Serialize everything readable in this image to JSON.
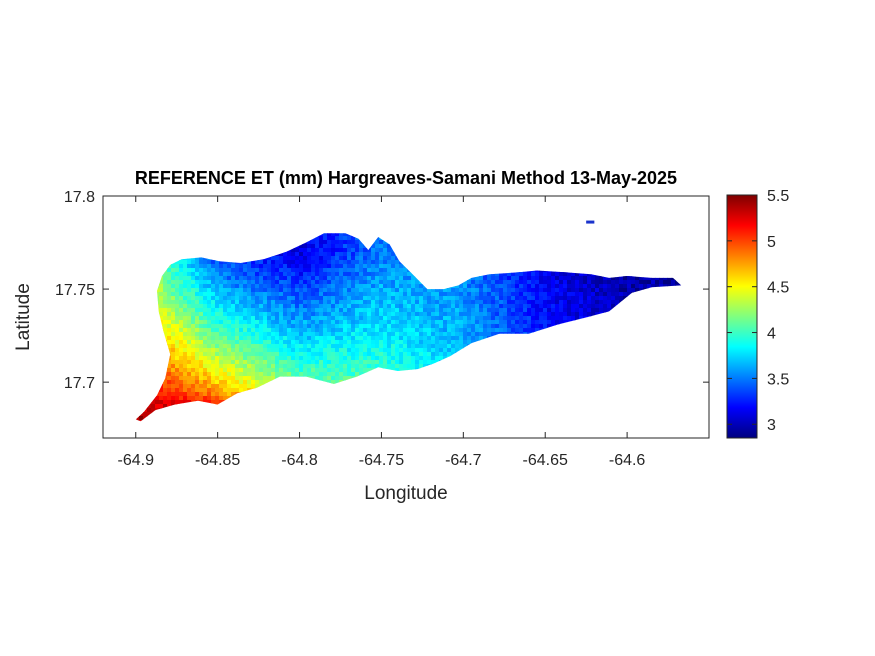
{
  "chart_data": {
    "type": "heatmap",
    "title": "REFERENCE ET (mm) Hargreaves-Samani Method  13-May-2025",
    "xlabel": "Longitude",
    "ylabel": "Latitude",
    "xlim": [
      -64.92,
      -64.55
    ],
    "ylim": [
      17.67,
      17.8
    ],
    "xticks": [
      -64.9,
      -64.85,
      -64.8,
      -64.75,
      -64.7,
      -64.65,
      -64.6
    ],
    "xtick_labels": [
      "-64.9",
      "-64.85",
      "-64.8",
      "-64.75",
      "-64.7",
      "-64.65",
      "-64.6"
    ],
    "yticks": [
      17.7,
      17.75,
      17.8
    ],
    "ytick_labels": [
      "17.7",
      "17.75",
      "17.8"
    ],
    "grid": false,
    "colormap": "jet",
    "colorbar": {
      "clim": [
        2.85,
        5.5
      ],
      "ticks": [
        3,
        3.5,
        4,
        4.5,
        5,
        5.5
      ],
      "tick_labels": [
        "3",
        "3.5",
        "4",
        "4.5",
        "5",
        "5.5"
      ]
    },
    "value_profile": {
      "description_points_lon": [
        -64.9,
        -64.85,
        -64.8,
        -64.75,
        -64.7,
        -64.65,
        -64.6
      ],
      "south_coast_values": [
        5.4,
        5.0,
        4.4,
        4.2,
        3.8,
        3.4,
        3.2
      ],
      "north_coast_values": [
        4.3,
        3.3,
        3.1,
        3.5,
        3.5,
        3.1,
        2.9
      ]
    },
    "region_outline": [
      [
        -64.9,
        17.68
      ],
      [
        -64.895,
        17.684
      ],
      [
        -64.887,
        17.693
      ],
      [
        -64.882,
        17.702
      ],
      [
        -64.879,
        17.715
      ],
      [
        -64.883,
        17.727
      ],
      [
        -64.886,
        17.738
      ],
      [
        -64.887,
        17.749
      ],
      [
        -64.884,
        17.757
      ],
      [
        -64.879,
        17.763
      ],
      [
        -64.872,
        17.766
      ],
      [
        -64.86,
        17.767
      ],
      [
        -64.849,
        17.765
      ],
      [
        -64.836,
        17.764
      ],
      [
        -64.822,
        17.766
      ],
      [
        -64.808,
        17.77
      ],
      [
        -64.796,
        17.775
      ],
      [
        -64.785,
        17.78
      ],
      [
        -64.772,
        17.78
      ],
      [
        -64.764,
        17.777
      ],
      [
        -64.758,
        17.771
      ],
      [
        -64.752,
        17.778
      ],
      [
        -64.745,
        17.774
      ],
      [
        -64.739,
        17.765
      ],
      [
        -64.731,
        17.758
      ],
      [
        -64.722,
        17.75
      ],
      [
        -64.712,
        17.75
      ],
      [
        -64.703,
        17.752
      ],
      [
        -64.695,
        17.756
      ],
      [
        -64.684,
        17.758
      ],
      [
        -64.666,
        17.759
      ],
      [
        -64.655,
        17.76
      ],
      [
        -64.638,
        17.759
      ],
      [
        -64.622,
        17.758
      ],
      [
        -64.611,
        17.756
      ],
      [
        -64.6,
        17.757
      ],
      [
        -64.585,
        17.756
      ],
      [
        -64.572,
        17.756
      ],
      [
        -64.567,
        17.752
      ],
      [
        -64.585,
        17.751
      ],
      [
        -64.597,
        17.748
      ],
      [
        -64.611,
        17.738
      ],
      [
        -64.624,
        17.735
      ],
      [
        -64.642,
        17.731
      ],
      [
        -64.66,
        17.726
      ],
      [
        -64.678,
        17.726
      ],
      [
        -64.695,
        17.721
      ],
      [
        -64.708,
        17.714
      ],
      [
        -64.718,
        17.71
      ],
      [
        -64.728,
        17.707
      ],
      [
        -64.74,
        17.706
      ],
      [
        -64.752,
        17.708
      ],
      [
        -64.765,
        17.703
      ],
      [
        -64.779,
        17.699
      ],
      [
        -64.796,
        17.703
      ],
      [
        -64.812,
        17.703
      ],
      [
        -64.826,
        17.697
      ],
      [
        -64.838,
        17.694
      ],
      [
        -64.85,
        17.688
      ],
      [
        -64.862,
        17.69
      ],
      [
        -64.876,
        17.688
      ],
      [
        -64.888,
        17.685
      ],
      [
        -64.897,
        17.679
      ]
    ],
    "small_islet": [
      [
        -64.625,
        17.786
      ],
      [
        -64.62,
        17.786
      ]
    ]
  }
}
